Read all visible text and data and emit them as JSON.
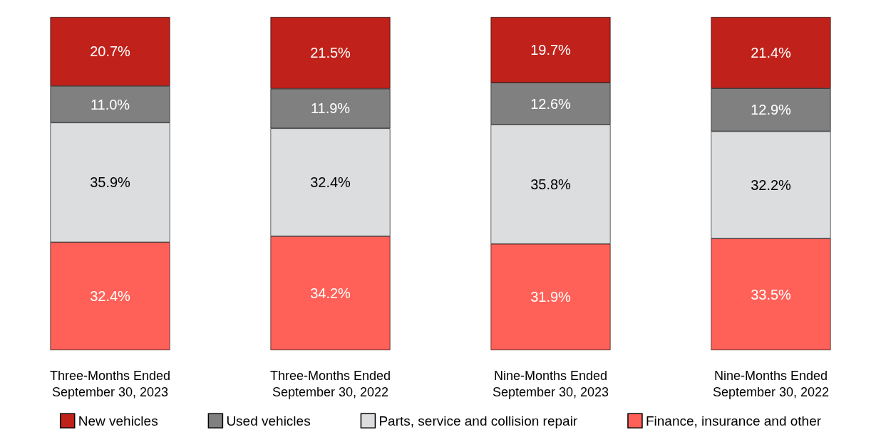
{
  "chart_data": {
    "type": "bar",
    "stacked": true,
    "legend": "bottom",
    "categories": [
      "Three-Months Ended\nSeptember 30, 2023",
      "Three-Months Ended\nSeptember 30, 2022",
      "Nine-Months Ended\nSeptember 30, 2023",
      "Nine-Months Ended\nSeptember 30, 2022"
    ],
    "series": [
      {
        "name": "Finance, insurance and other",
        "color": "#ff6057",
        "values": [
          32.4,
          34.2,
          31.9,
          33.5
        ],
        "value_labels": [
          "32.4%",
          "34.2%",
          "31.9%",
          "33.5%"
        ]
      },
      {
        "name": "Parts, service and collision repair",
        "color": "#dcdddf",
        "values": [
          35.9,
          32.4,
          35.8,
          32.2
        ],
        "value_labels": [
          "35.9%",
          "32.4%",
          "35.8%",
          "32.2%"
        ]
      },
      {
        "name": "Used vehicles",
        "color": "#808080",
        "values": [
          11.0,
          11.9,
          12.6,
          12.9
        ],
        "value_labels": [
          "11.0%",
          "11.9%",
          "12.6%",
          "12.9%"
        ]
      },
      {
        "name": "New vehicles",
        "color": "#c0211a",
        "values": [
          20.7,
          21.5,
          19.7,
          21.4
        ],
        "value_labels": [
          "20.7%",
          "21.5%",
          "19.7%",
          "21.4%"
        ]
      }
    ]
  }
}
